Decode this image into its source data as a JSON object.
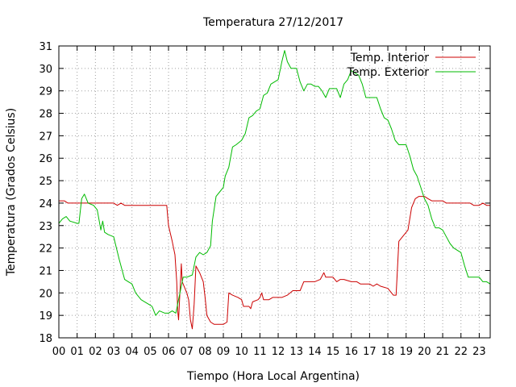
{
  "chart_data": {
    "type": "line",
    "title": "Temperatura 27/12/2017",
    "xlabel": "Tiempo (Hora Local Argentina)",
    "ylabel": "Temperatura (Grados Celsius)",
    "xlim": [
      0,
      23.6
    ],
    "ylim": [
      18,
      31
    ],
    "x_tick_labels": [
      "00",
      "01",
      "02",
      "03",
      "04",
      "05",
      "06",
      "07",
      "08",
      "09",
      "10",
      "11",
      "12",
      "13",
      "14",
      "15",
      "16",
      "17",
      "18",
      "19",
      "20",
      "21",
      "22",
      "23"
    ],
    "y_ticks": [
      18,
      19,
      20,
      21,
      22,
      23,
      24,
      25,
      26,
      27,
      28,
      29,
      30,
      31
    ],
    "grid": true,
    "legend_position": "top-right",
    "series": [
      {
        "name": "Temp. Interior",
        "color": "#cc0000",
        "points": [
          [
            0,
            24.1
          ],
          [
            0.3,
            24.1
          ],
          [
            0.5,
            24.0
          ],
          [
            1.0,
            24.0
          ],
          [
            2.0,
            24.0
          ],
          [
            3.0,
            24.0
          ],
          [
            3.2,
            23.9
          ],
          [
            3.4,
            24.0
          ],
          [
            3.6,
            23.9
          ],
          [
            4.5,
            23.9
          ],
          [
            5.5,
            23.9
          ],
          [
            5.9,
            23.9
          ],
          [
            6.0,
            23.0
          ],
          [
            6.2,
            22.3
          ],
          [
            6.35,
            21.7
          ],
          [
            6.45,
            20.5
          ],
          [
            6.5,
            19.2
          ],
          [
            6.55,
            18.8
          ],
          [
            6.6,
            19.6
          ],
          [
            6.7,
            21.3
          ],
          [
            6.75,
            20.5
          ],
          [
            6.9,
            20.2
          ],
          [
            7.0,
            20.0
          ],
          [
            7.1,
            19.7
          ],
          [
            7.2,
            18.8
          ],
          [
            7.3,
            18.4
          ],
          [
            7.4,
            19.5
          ],
          [
            7.5,
            21.2
          ],
          [
            7.7,
            20.9
          ],
          [
            7.9,
            20.5
          ],
          [
            8.0,
            19.8
          ],
          [
            8.1,
            19.0
          ],
          [
            8.3,
            18.7
          ],
          [
            8.5,
            18.6
          ],
          [
            8.8,
            18.6
          ],
          [
            9.0,
            18.6
          ],
          [
            9.2,
            18.7
          ],
          [
            9.3,
            20.0
          ],
          [
            9.5,
            19.9
          ],
          [
            9.8,
            19.8
          ],
          [
            10.0,
            19.7
          ],
          [
            10.1,
            19.4
          ],
          [
            10.4,
            19.4
          ],
          [
            10.5,
            19.3
          ],
          [
            10.6,
            19.6
          ],
          [
            10.9,
            19.7
          ],
          [
            11.0,
            19.8
          ],
          [
            11.1,
            20.0
          ],
          [
            11.2,
            19.7
          ],
          [
            11.5,
            19.7
          ],
          [
            11.7,
            19.8
          ],
          [
            12.2,
            19.8
          ],
          [
            12.5,
            19.9
          ],
          [
            12.8,
            20.1
          ],
          [
            13.2,
            20.1
          ],
          [
            13.4,
            20.5
          ],
          [
            14.0,
            20.5
          ],
          [
            14.3,
            20.6
          ],
          [
            14.5,
            20.9
          ],
          [
            14.6,
            20.7
          ],
          [
            15.0,
            20.7
          ],
          [
            15.2,
            20.5
          ],
          [
            15.4,
            20.6
          ],
          [
            15.6,
            20.6
          ],
          [
            16.0,
            20.5
          ],
          [
            16.3,
            20.5
          ],
          [
            16.5,
            20.4
          ],
          [
            17.0,
            20.4
          ],
          [
            17.2,
            20.3
          ],
          [
            17.4,
            20.4
          ],
          [
            17.6,
            20.3
          ],
          [
            18.0,
            20.2
          ],
          [
            18.2,
            20.0
          ],
          [
            18.3,
            19.9
          ],
          [
            18.45,
            19.9
          ],
          [
            18.6,
            22.3
          ],
          [
            18.8,
            22.5
          ],
          [
            19.1,
            22.8
          ],
          [
            19.3,
            23.8
          ],
          [
            19.5,
            24.2
          ],
          [
            19.7,
            24.3
          ],
          [
            20.0,
            24.3
          ],
          [
            20.2,
            24.2
          ],
          [
            20.4,
            24.1
          ],
          [
            21.0,
            24.1
          ],
          [
            21.2,
            24.0
          ],
          [
            22.0,
            24.0
          ],
          [
            22.5,
            24.0
          ],
          [
            22.7,
            23.9
          ],
          [
            23.0,
            23.9
          ],
          [
            23.2,
            24.0
          ],
          [
            23.4,
            23.9
          ],
          [
            23.6,
            23.9
          ]
        ]
      },
      {
        "name": "Temp. Exterior",
        "color": "#00bb00",
        "points": [
          [
            0,
            23.1
          ],
          [
            0.2,
            23.3
          ],
          [
            0.4,
            23.4
          ],
          [
            0.6,
            23.2
          ],
          [
            1.0,
            23.1
          ],
          [
            1.1,
            23.1
          ],
          [
            1.25,
            24.2
          ],
          [
            1.4,
            24.4
          ],
          [
            1.6,
            24.0
          ],
          [
            1.9,
            23.9
          ],
          [
            2.1,
            23.7
          ],
          [
            2.3,
            22.8
          ],
          [
            2.4,
            23.2
          ],
          [
            2.5,
            22.7
          ],
          [
            2.7,
            22.6
          ],
          [
            3.0,
            22.5
          ],
          [
            3.3,
            21.5
          ],
          [
            3.6,
            20.6
          ],
          [
            3.8,
            20.5
          ],
          [
            4.0,
            20.4
          ],
          [
            4.2,
            20.0
          ],
          [
            4.5,
            19.7
          ],
          [
            4.7,
            19.6
          ],
          [
            4.9,
            19.5
          ],
          [
            5.1,
            19.4
          ],
          [
            5.3,
            19.0
          ],
          [
            5.5,
            19.2
          ],
          [
            5.8,
            19.1
          ],
          [
            6.0,
            19.1
          ],
          [
            6.2,
            19.2
          ],
          [
            6.4,
            19.1
          ],
          [
            6.6,
            19.9
          ],
          [
            6.8,
            20.7
          ],
          [
            7.0,
            20.7
          ],
          [
            7.3,
            20.8
          ],
          [
            7.5,
            21.6
          ],
          [
            7.7,
            21.8
          ],
          [
            7.9,
            21.7
          ],
          [
            8.1,
            21.8
          ],
          [
            8.3,
            22.1
          ],
          [
            8.4,
            23.2
          ],
          [
            8.6,
            24.3
          ],
          [
            8.8,
            24.5
          ],
          [
            9.0,
            24.7
          ],
          [
            9.1,
            25.2
          ],
          [
            9.3,
            25.6
          ],
          [
            9.5,
            26.5
          ],
          [
            9.7,
            26.6
          ],
          [
            10.0,
            26.8
          ],
          [
            10.2,
            27.1
          ],
          [
            10.4,
            27.8
          ],
          [
            10.6,
            27.9
          ],
          [
            10.8,
            28.1
          ],
          [
            11.0,
            28.2
          ],
          [
            11.2,
            28.8
          ],
          [
            11.4,
            28.9
          ],
          [
            11.6,
            29.3
          ],
          [
            11.8,
            29.4
          ],
          [
            12.0,
            29.5
          ],
          [
            12.2,
            30.3
          ],
          [
            12.35,
            30.8
          ],
          [
            12.5,
            30.3
          ],
          [
            12.7,
            30.0
          ],
          [
            13.0,
            30.0
          ],
          [
            13.2,
            29.4
          ],
          [
            13.4,
            29.0
          ],
          [
            13.6,
            29.3
          ],
          [
            13.8,
            29.3
          ],
          [
            14.0,
            29.2
          ],
          [
            14.2,
            29.2
          ],
          [
            14.4,
            29.0
          ],
          [
            14.6,
            28.7
          ],
          [
            14.8,
            29.1
          ],
          [
            15.0,
            29.1
          ],
          [
            15.2,
            29.1
          ],
          [
            15.4,
            28.7
          ],
          [
            15.6,
            29.3
          ],
          [
            15.8,
            29.5
          ],
          [
            16.0,
            29.9
          ],
          [
            16.2,
            29.8
          ],
          [
            16.4,
            29.7
          ],
          [
            16.6,
            29.3
          ],
          [
            16.8,
            28.7
          ],
          [
            17.0,
            28.7
          ],
          [
            17.2,
            28.7
          ],
          [
            17.4,
            28.7
          ],
          [
            17.6,
            28.2
          ],
          [
            17.8,
            27.8
          ],
          [
            18.0,
            27.7
          ],
          [
            18.2,
            27.3
          ],
          [
            18.4,
            26.8
          ],
          [
            18.6,
            26.6
          ],
          [
            18.8,
            26.6
          ],
          [
            19.0,
            26.6
          ],
          [
            19.2,
            26.1
          ],
          [
            19.4,
            25.5
          ],
          [
            19.6,
            25.2
          ],
          [
            19.8,
            24.7
          ],
          [
            20.0,
            24.2
          ],
          [
            20.2,
            23.9
          ],
          [
            20.4,
            23.3
          ],
          [
            20.6,
            22.9
          ],
          [
            20.8,
            22.9
          ],
          [
            21.0,
            22.8
          ],
          [
            21.2,
            22.5
          ],
          [
            21.4,
            22.2
          ],
          [
            21.6,
            22.0
          ],
          [
            21.8,
            21.9
          ],
          [
            22.0,
            21.8
          ],
          [
            22.2,
            21.2
          ],
          [
            22.4,
            20.7
          ],
          [
            22.6,
            20.7
          ],
          [
            22.8,
            20.7
          ],
          [
            23.0,
            20.7
          ],
          [
            23.2,
            20.5
          ],
          [
            23.4,
            20.5
          ],
          [
            23.6,
            20.4
          ]
        ]
      }
    ]
  }
}
